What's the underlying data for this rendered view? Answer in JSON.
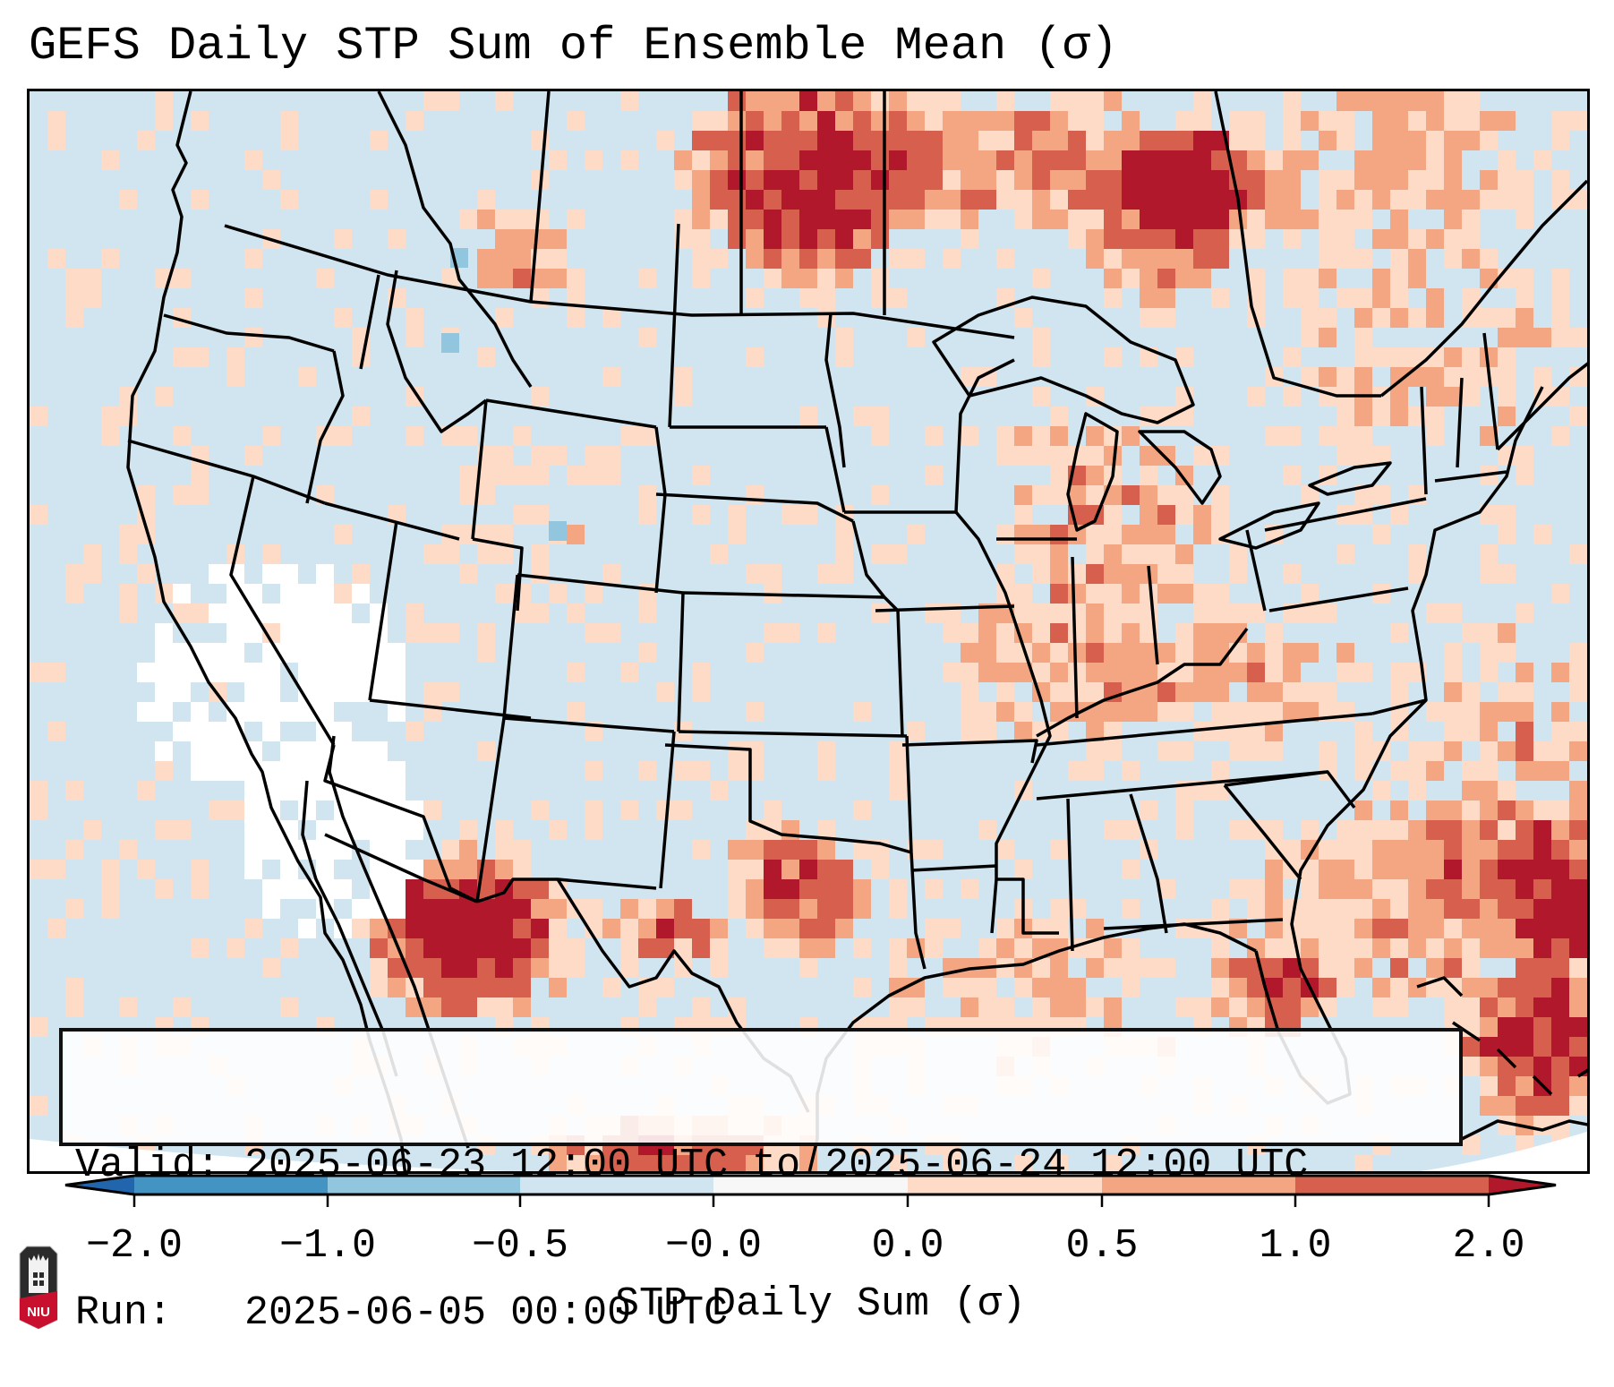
{
  "title": "GEFS Daily STP Sum of Ensemble Mean (σ)",
  "info_box": {
    "valid_label": "Valid:",
    "valid_text": "2025-06-23 12:00 UTC to 2025-06-24 12:00 UTC",
    "run_label": "Run:",
    "run_text": "2025-06-05 00:00 UTC"
  },
  "colorbar": {
    "label": "STP Daily Sum (σ)",
    "ticks": [
      "−2.0",
      "−1.0",
      "−0.5",
      "−0.0",
      "0.0",
      "0.5",
      "1.0",
      "2.0"
    ],
    "extend": "both",
    "segments": [
      {
        "from": "<-2.0",
        "color": "#2166ac"
      },
      {
        "from": "-2.0",
        "to": "-1.0",
        "color": "#4393c3"
      },
      {
        "from": "-1.0",
        "to": "-0.5",
        "color": "#92c5de"
      },
      {
        "from": "-0.5",
        "to": "-0.0",
        "color": "#d1e5f0"
      },
      {
        "from": "-0.0",
        "to": "0.0",
        "color": "#f7f7f7"
      },
      {
        "from": "0.0",
        "to": "0.5",
        "color": "#fddbc7"
      },
      {
        "from": "0.5",
        "to": "1.0",
        "color": "#f4a582"
      },
      {
        "from": "1.0",
        "to": "2.0",
        "color": "#d6604d"
      },
      {
        "from": ">2.0",
        "color": "#b2182b"
      }
    ]
  },
  "logo": {
    "text": "NIU",
    "icon": "niu-logo-icon"
  },
  "map": {
    "projection": "Lambert Conformal (CONUS)",
    "region": "Contiguous United States, southern Canada, northern Mexico, Gulf of Mexico, western Atlantic",
    "field": "STP daily sum standardized anomaly (σ)",
    "highlights": [
      {
        "area": "Southern Manitoba / North Dakota border",
        "category": "0.5 to >2.0"
      },
      {
        "area": "Northwestern Ontario",
        "category": "0.5 to >2.0"
      },
      {
        "area": "Central Texas",
        "category": "0.5 to >2.0"
      },
      {
        "area": "Sonora / Chihuahua, Mexico",
        "category": ">2.0"
      },
      {
        "area": "Western Atlantic east of Florida",
        "category": "0.5 to >2.0"
      },
      {
        "area": "Bahamas / Eastern Cuba / Hispaniola",
        "category": ">2.0"
      },
      {
        "area": "Ohio Valley / Kentucky",
        "category": "0.5 to 1.0"
      },
      {
        "area": "Southern California / Baja offshore",
        "category": "-0.0 to 0.0"
      }
    ]
  }
}
